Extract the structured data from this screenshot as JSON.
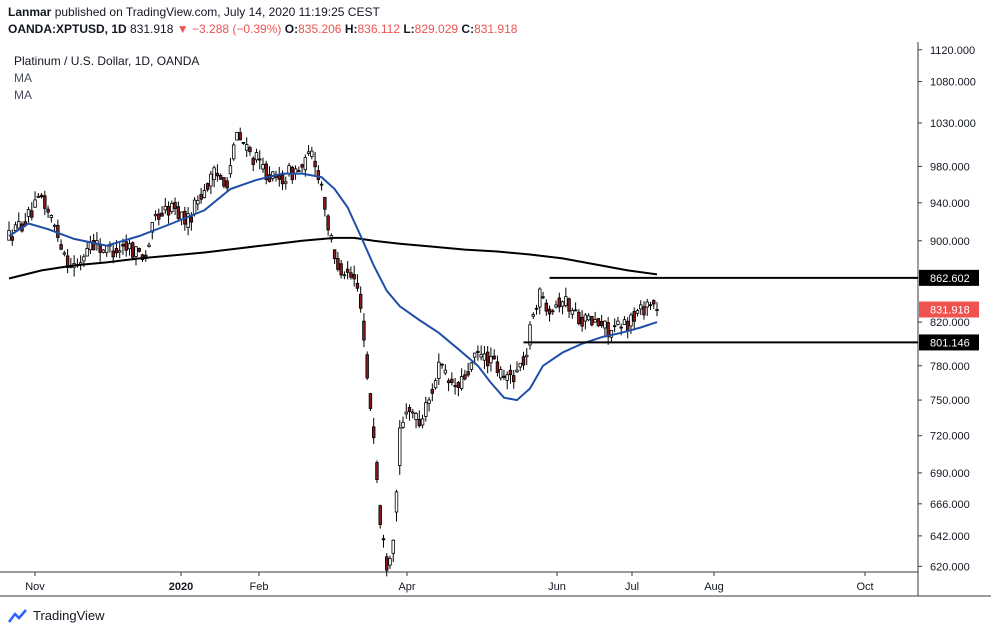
{
  "header": {
    "author": "Lanmar",
    "published": "published on TradingView.com, July 14, 2020 11:19:25 CEST",
    "symbol": "OANDA:XPTUSD, 1D",
    "last": "831.918",
    "arrow": "▼",
    "change": "−3.288 (−0.39%)",
    "o_label": "O:",
    "o": "835.206",
    "h_label": "H:",
    "h": "836.112",
    "l_label": "L:",
    "l": "829.029",
    "c_label": "C:",
    "c": "831.918"
  },
  "legend": {
    "title": "Platinum / U.S. Dollar, 1D, OANDA",
    "ma1": "MA",
    "ma2": "MA"
  },
  "footer": {
    "brand": "TradingView"
  },
  "colors": {
    "up": "#ffffff",
    "down": "#8b1a1a",
    "wick": "#000000",
    "ma_short": "#1f4fa8",
    "ma_long": "#000000",
    "last_price_bg": "#ef5350"
  },
  "chart_data": {
    "type": "candlestick",
    "title": "Platinum / U.S. Dollar, 1D, OANDA",
    "x_ticks": [
      "Nov",
      "2020",
      "Feb",
      "Apr",
      "Jun",
      "Jul",
      "Aug",
      "Oct"
    ],
    "y_ticks": [
      "1120.000",
      "1080.000",
      "1030.000",
      "980.000",
      "940.000",
      "900.000",
      "820.000",
      "780.000",
      "750.000",
      "720.000",
      "690.000",
      "666.000",
      "642.000",
      "620.000"
    ],
    "y_scale": "log",
    "ylim": [
      616,
      1130
    ],
    "price_levels": [
      {
        "label": "862.602",
        "value": 862.602
      },
      {
        "label": "801.146",
        "value": 801.146
      }
    ],
    "last_price": {
      "label": "831.918",
      "value": 831.918
    },
    "anchors": [
      [
        0,
        905
      ],
      [
        6,
        925
      ],
      [
        10,
        945
      ],
      [
        14,
        915
      ],
      [
        18,
        880
      ],
      [
        21,
        872
      ],
      [
        25,
        900
      ],
      [
        30,
        890
      ],
      [
        36,
        895
      ],
      [
        42,
        885
      ],
      [
        45,
        925
      ],
      [
        50,
        935
      ],
      [
        55,
        920
      ],
      [
        58,
        945
      ],
      [
        63,
        970
      ],
      [
        67,
        965
      ],
      [
        70,
        1015
      ],
      [
        74,
        995
      ],
      [
        78,
        978
      ],
      [
        82,
        962
      ],
      [
        86,
        972
      ],
      [
        90,
        978
      ],
      [
        93,
        995
      ],
      [
        96,
        960
      ],
      [
        98,
        915
      ],
      [
        100,
        880
      ],
      [
        103,
        870
      ],
      [
        106,
        860
      ],
      [
        108,
        840
      ],
      [
        110,
        770
      ],
      [
        112,
        720
      ],
      [
        114,
        650
      ],
      [
        116,
        622
      ],
      [
        118,
        640
      ],
      [
        120,
        720
      ],
      [
        123,
        745
      ],
      [
        126,
        730
      ],
      [
        129,
        750
      ],
      [
        132,
        780
      ],
      [
        135,
        765
      ],
      [
        138,
        760
      ],
      [
        141,
        775
      ],
      [
        144,
        790
      ],
      [
        148,
        785
      ],
      [
        152,
        768
      ],
      [
        156,
        775
      ],
      [
        159,
        790
      ],
      [
        161,
        832
      ],
      [
        163,
        845
      ],
      [
        166,
        835
      ],
      [
        170,
        842
      ],
      [
        174,
        828
      ],
      [
        177,
        822
      ],
      [
        181,
        818
      ],
      [
        185,
        812
      ],
      [
        188,
        815
      ],
      [
        191,
        822
      ],
      [
        194,
        832
      ],
      [
        197,
        840
      ],
      [
        199,
        832
      ]
    ],
    "ma_short": [
      [
        0,
        905
      ],
      [
        6,
        918
      ],
      [
        12,
        912
      ],
      [
        20,
        902
      ],
      [
        30,
        895
      ],
      [
        40,
        905
      ],
      [
        50,
        918
      ],
      [
        60,
        932
      ],
      [
        68,
        955
      ],
      [
        76,
        965
      ],
      [
        84,
        972
      ],
      [
        90,
        972
      ],
      [
        96,
        968
      ],
      [
        100,
        955
      ],
      [
        104,
        935
      ],
      [
        108,
        905
      ],
      [
        112,
        875
      ],
      [
        116,
        850
      ],
      [
        120,
        835
      ],
      [
        126,
        822
      ],
      [
        132,
        810
      ],
      [
        138,
        795
      ],
      [
        144,
        780
      ],
      [
        148,
        765
      ],
      [
        152,
        752
      ],
      [
        156,
        750
      ],
      [
        160,
        760
      ],
      [
        164,
        780
      ],
      [
        170,
        792
      ],
      [
        176,
        800
      ],
      [
        182,
        806
      ],
      [
        188,
        810
      ],
      [
        194,
        815
      ],
      [
        199,
        820
      ]
    ],
    "ma_long": [
      [
        0,
        862
      ],
      [
        10,
        870
      ],
      [
        20,
        875
      ],
      [
        30,
        878
      ],
      [
        40,
        882
      ],
      [
        50,
        885
      ],
      [
        60,
        888
      ],
      [
        70,
        892
      ],
      [
        80,
        896
      ],
      [
        90,
        900
      ],
      [
        100,
        903
      ],
      [
        106,
        903
      ],
      [
        112,
        900
      ],
      [
        120,
        897
      ],
      [
        130,
        894
      ],
      [
        140,
        891
      ],
      [
        150,
        889
      ],
      [
        160,
        886
      ],
      [
        170,
        882
      ],
      [
        180,
        876
      ],
      [
        190,
        870
      ],
      [
        199,
        866
      ]
    ],
    "candle_count": 200
  }
}
